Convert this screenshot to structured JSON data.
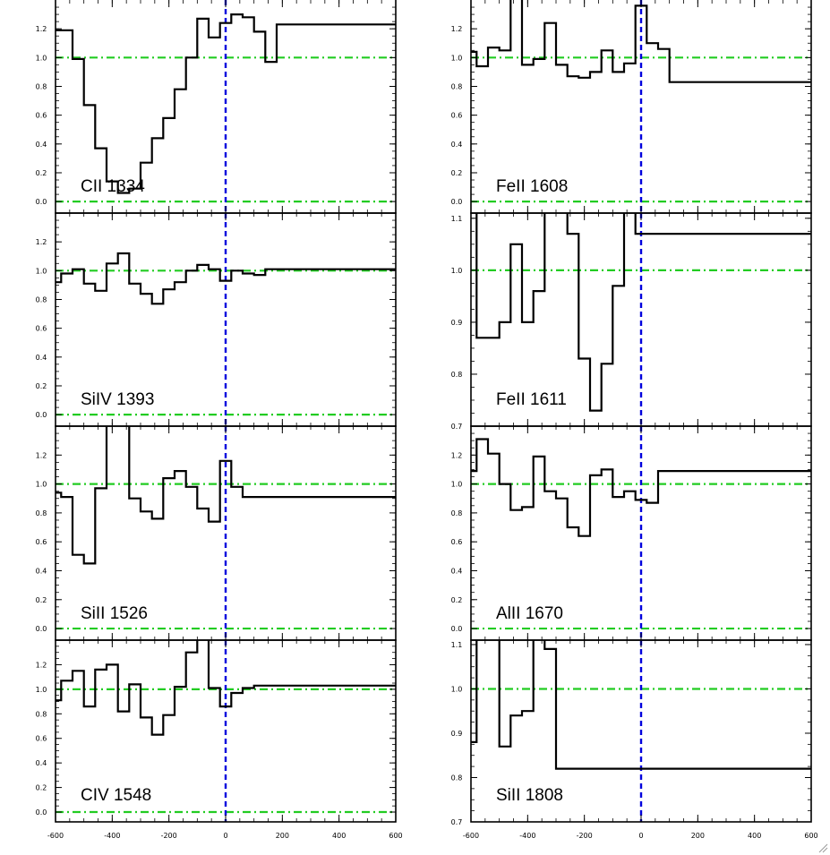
{
  "chart_data": [
    {
      "type": "line",
      "label": "CII 1334",
      "ylim": [
        -0.08,
        1.4
      ],
      "yticks": [
        "0.0",
        "0.2",
        "0.4",
        "0.6",
        "0.8",
        "1.0",
        "1.2"
      ],
      "ytick_values": [
        0,
        0.2,
        0.4,
        0.6,
        0.8,
        1.0,
        1.2
      ],
      "x": [
        -600,
        -560,
        -520,
        -480,
        -440,
        -400,
        -360,
        -320,
        -280,
        -240,
        -200,
        -160,
        -120,
        -80,
        -40,
        0,
        40,
        80,
        120,
        160,
        200,
        240,
        280,
        320,
        360,
        400,
        440,
        480,
        520,
        560,
        600
      ],
      "y": [
        1.19,
        1.19,
        0.99,
        0.67,
        0.37,
        0.14,
        0.06,
        0.09,
        0.27,
        0.44,
        0.58,
        0.78,
        1.0,
        1.27,
        1.14,
        1.24,
        1.3,
        1.28,
        1.18,
        0.97,
        1.23,
        1.23,
        1.23,
        1.23,
        1.23,
        1.23,
        1.23,
        1.23,
        1.23,
        1.23,
        1.23
      ]
    },
    {
      "type": "line",
      "label": "SiIV 1393",
      "ylim": [
        -0.08,
        1.4
      ],
      "yticks": [
        "0.0",
        "0.2",
        "0.4",
        "0.6",
        "0.8",
        "1.0",
        "1.2"
      ],
      "ytick_values": [
        0,
        0.2,
        0.4,
        0.6,
        0.8,
        1.0,
        1.2
      ],
      "x": [
        -600,
        -560,
        -520,
        -480,
        -440,
        -400,
        -360,
        -320,
        -280,
        -240,
        -200,
        -160,
        -120,
        -80,
        -40,
        0,
        40,
        80,
        120,
        160,
        200,
        240,
        280,
        320,
        360,
        400,
        440,
        480,
        520,
        560,
        600
      ],
      "y": [
        0.92,
        0.98,
        1.01,
        0.91,
        0.86,
        1.05,
        1.12,
        0.91,
        0.84,
        0.77,
        0.87,
        0.92,
        1.0,
        1.04,
        1.01,
        0.93,
        1.0,
        0.98,
        0.97,
        1.01,
        1.01,
        1.01,
        1.01,
        1.01,
        1.01,
        1.01,
        1.01,
        1.01,
        1.01,
        1.01,
        1.01
      ]
    },
    {
      "type": "line",
      "label": "SiII 1526",
      "ylim": [
        -0.08,
        1.4
      ],
      "yticks": [
        "0.0",
        "0.2",
        "0.4",
        "0.6",
        "0.8",
        "1.0",
        "1.2"
      ],
      "ytick_values": [
        0,
        0.2,
        0.4,
        0.6,
        0.8,
        1.0,
        1.2
      ],
      "x": [
        -600,
        -560,
        -520,
        -480,
        -440,
        -400,
        -360,
        -320,
        -280,
        -240,
        -200,
        -160,
        -120,
        -80,
        -40,
        0,
        40,
        80,
        120,
        160,
        200,
        240,
        280,
        320,
        360,
        400,
        440,
        480,
        520,
        560,
        600
      ],
      "y": [
        0.94,
        0.91,
        0.51,
        0.45,
        0.97,
        1.45,
        1.45,
        0.9,
        0.81,
        0.76,
        1.04,
        1.09,
        0.98,
        0.83,
        0.74,
        1.16,
        0.98,
        0.91,
        0.91,
        0.91,
        0.91,
        0.91,
        0.91,
        0.91,
        0.91,
        0.91,
        0.91,
        0.91,
        0.91,
        0.91,
        0.91
      ]
    },
    {
      "type": "line",
      "label": "CIV 1548",
      "ylim": [
        -0.08,
        1.4
      ],
      "yticks": [
        "0.0",
        "0.2",
        "0.4",
        "0.6",
        "0.8",
        "1.0",
        "1.2"
      ],
      "ytick_values": [
        0,
        0.2,
        0.4,
        0.6,
        0.8,
        1.0,
        1.2
      ],
      "x": [
        -600,
        -560,
        -520,
        -480,
        -440,
        -400,
        -360,
        -320,
        -280,
        -240,
        -200,
        -160,
        -120,
        -80,
        -40,
        0,
        40,
        80,
        120,
        160,
        200,
        240,
        280,
        320,
        360,
        400,
        440,
        480,
        520,
        560,
        600
      ],
      "y": [
        0.91,
        1.07,
        1.15,
        0.86,
        1.16,
        1.2,
        0.82,
        1.04,
        0.77,
        0.63,
        0.79,
        1.02,
        1.3,
        1.45,
        1.01,
        0.86,
        0.97,
        1.01,
        1.03,
        1.03,
        1.03,
        1.03,
        1.03,
        1.03,
        1.03,
        1.03,
        1.03,
        1.03,
        1.03,
        1.03,
        1.03
      ]
    },
    {
      "type": "line",
      "label": "FeII 1608",
      "ylim": [
        -0.08,
        1.4
      ],
      "yticks": [
        "0.0",
        "0.2",
        "0.4",
        "0.6",
        "0.8",
        "1.0",
        "1.2"
      ],
      "ytick_values": [
        0,
        0.2,
        0.4,
        0.6,
        0.8,
        1.0,
        1.2
      ],
      "x": [
        -600,
        -560,
        -520,
        -480,
        -440,
        -400,
        -360,
        -320,
        -280,
        -240,
        -200,
        -160,
        -120,
        -80,
        -40,
        0,
        40,
        80,
        120,
        160,
        200,
        240,
        280,
        320,
        360,
        400,
        440,
        480,
        520,
        560,
        600
      ],
      "y": [
        1.04,
        0.94,
        1.07,
        1.05,
        1.5,
        0.95,
        0.99,
        1.24,
        0.95,
        0.87,
        0.86,
        0.9,
        1.05,
        0.9,
        0.96,
        1.36,
        1.1,
        1.06,
        0.83,
        0.83,
        0.83,
        0.83,
        0.83,
        0.83,
        0.83,
        0.83,
        0.83,
        0.83,
        0.83,
        0.83,
        0.83
      ]
    },
    {
      "type": "line",
      "label": "FeII 1611",
      "ylim": [
        0.7,
        1.11
      ],
      "yticks": [
        "0.7",
        "0.8",
        "0.9",
        "1.0",
        "1.1"
      ],
      "ytick_values": [
        0.7,
        0.8,
        0.9,
        1.0,
        1.1
      ],
      "x": [
        -600,
        -560,
        -520,
        -480,
        -440,
        -400,
        -360,
        -320,
        -280,
        -240,
        -200,
        -160,
        -120,
        -80,
        -40,
        0,
        40,
        80,
        120,
        160,
        200,
        240,
        280,
        320,
        360,
        400,
        440,
        480,
        520,
        560,
        600
      ],
      "y": [
        1.12,
        0.87,
        0.87,
        0.9,
        1.05,
        0.9,
        0.96,
        1.12,
        1.12,
        1.07,
        0.83,
        0.73,
        0.82,
        0.97,
        1.12,
        1.07,
        1.07,
        1.07,
        1.07,
        1.07,
        1.07,
        1.07,
        1.07,
        1.07,
        1.07,
        1.07,
        1.07,
        1.07,
        1.07,
        1.07,
        1.07
      ]
    },
    {
      "type": "line",
      "label": "AlII 1670",
      "ylim": [
        -0.08,
        1.4
      ],
      "yticks": [
        "0.0",
        "0.2",
        "0.4",
        "0.6",
        "0.8",
        "1.0",
        "1.2"
      ],
      "ytick_values": [
        0,
        0.2,
        0.4,
        0.6,
        0.8,
        1.0,
        1.2
      ],
      "x": [
        -600,
        -560,
        -520,
        -480,
        -440,
        -400,
        -360,
        -320,
        -280,
        -240,
        -200,
        -160,
        -120,
        -80,
        -40,
        0,
        40,
        80,
        120,
        160,
        200,
        240,
        280,
        320,
        360,
        400,
        440,
        480,
        520,
        560,
        600
      ],
      "y": [
        1.09,
        1.31,
        1.21,
        1.0,
        0.82,
        0.84,
        1.19,
        0.95,
        0.9,
        0.7,
        0.64,
        1.06,
        1.1,
        0.91,
        0.95,
        0.89,
        0.87,
        1.09,
        1.09,
        1.09,
        1.09,
        1.09,
        1.09,
        1.09,
        1.09,
        1.09,
        1.09,
        1.09,
        1.09,
        1.09,
        1.09
      ]
    },
    {
      "type": "line",
      "label": "SiII 1808",
      "ylim": [
        0.7,
        1.11
      ],
      "yticks": [
        "0.7",
        "0.8",
        "0.9",
        "1.0",
        "1.1"
      ],
      "ytick_values": [
        0.7,
        0.8,
        0.9,
        1.0,
        1.1
      ],
      "x": [
        -600,
        -560,
        -520,
        -480,
        -440,
        -400,
        -360,
        -320,
        -280,
        -240,
        -200,
        -160,
        -120,
        -80,
        -40,
        0,
        40,
        80,
        120,
        160,
        200,
        240,
        280,
        320,
        360,
        400,
        440,
        480,
        520,
        560,
        600
      ],
      "y": [
        0.88,
        1.12,
        1.12,
        0.87,
        0.94,
        0.95,
        1.12,
        1.09,
        0.82,
        0.82,
        0.82,
        0.82,
        0.82,
        0.82,
        0.82,
        0.82,
        0.82,
        0.82,
        0.82,
        0.82,
        0.82,
        0.82,
        0.82,
        0.82,
        0.82,
        0.82,
        0.82,
        0.82,
        0.82,
        0.82,
        0.82
      ]
    }
  ],
  "xaxis": {
    "xlim": [
      -600,
      600
    ],
    "xticks": [
      "-600",
      "-400",
      "-200",
      "0",
      "200",
      "400",
      "600"
    ],
    "xtick_values": [
      -600,
      -400,
      -200,
      0,
      200,
      400,
      600
    ]
  },
  "reference_lines": {
    "continuum": 1.0,
    "zero": 0.0,
    "velocity_zero": 0
  },
  "colors": {
    "spectrum": "#000000",
    "continuum": "#22cc22",
    "velocity_zero": "#0000dd",
    "axes": "#000000"
  },
  "grid": false
}
